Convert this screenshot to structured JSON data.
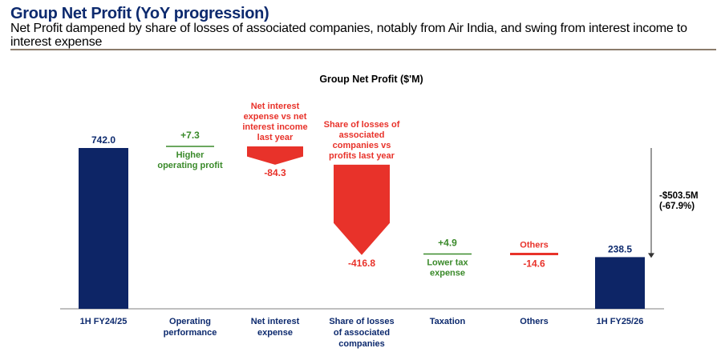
{
  "header": {
    "title": "Group Net Profit (YoY progression)",
    "subtitle": "Net Profit dampened by share of losses of associated companies, notably from Air India, and swing from interest income to interest expense"
  },
  "colors": {
    "total": "#0d2566",
    "increase": "#3a8a2a",
    "decrease": "#e8322a",
    "text_navy": "#0d2a6e"
  },
  "chart_data": {
    "type": "waterfall",
    "title": "Group Net Profit ($'M)",
    "categories": [
      [
        "1H FY24/25"
      ],
      [
        "Operating",
        "performance"
      ],
      [
        "Net interest",
        "expense"
      ],
      [
        "Share of losses",
        "of associated",
        "companies"
      ],
      [
        "Taxation"
      ],
      [
        "Others"
      ],
      [
        "1H FY25/26"
      ]
    ],
    "steps": [
      {
        "kind": "total",
        "value": 742.0,
        "label": "742.0",
        "note": []
      },
      {
        "kind": "delta",
        "value": 7.3,
        "label": "+7.3",
        "note": [
          "Higher",
          "operating profit"
        ]
      },
      {
        "kind": "delta",
        "value": -84.3,
        "label": "-84.3",
        "note": [
          "Net interest",
          "expense vs net",
          "interest income",
          "last year"
        ]
      },
      {
        "kind": "delta",
        "value": -416.8,
        "label": "-416.8",
        "note": [
          "Share of losses of",
          "associated",
          "companies vs",
          "profits last year"
        ]
      },
      {
        "kind": "delta",
        "value": 4.9,
        "label": "+4.9",
        "note": [
          "Lower tax",
          "expense"
        ]
      },
      {
        "kind": "delta",
        "value": -14.6,
        "label": "-14.6",
        "note": [
          "Others"
        ]
      },
      {
        "kind": "total",
        "value": 238.5,
        "label": "238.5",
        "note": []
      }
    ],
    "total_change": {
      "label": [
        "-$503.5M",
        "(-67.9%)"
      ],
      "from": 742.0,
      "to": 238.5
    },
    "ylim": [
      0,
      800
    ]
  }
}
